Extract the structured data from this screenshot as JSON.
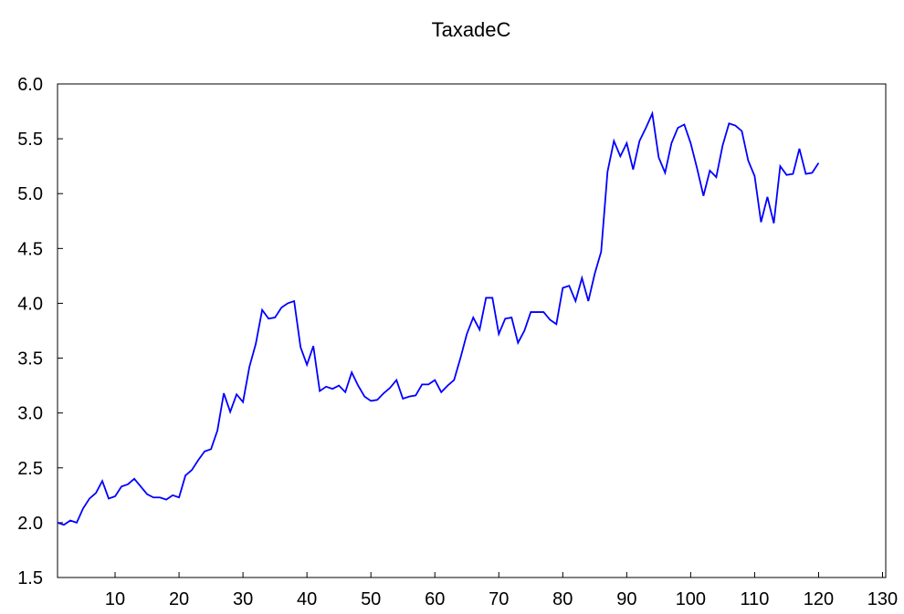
{
  "chart_data": {
    "type": "line",
    "title": "TaxadeC",
    "x": [
      1,
      2,
      3,
      4,
      5,
      6,
      7,
      8,
      9,
      10,
      11,
      12,
      13,
      14,
      15,
      16,
      17,
      18,
      19,
      20,
      21,
      22,
      23,
      24,
      25,
      26,
      27,
      28,
      29,
      30,
      31,
      32,
      33,
      34,
      35,
      36,
      37,
      38,
      39,
      40,
      41,
      42,
      43,
      44,
      45,
      46,
      47,
      48,
      49,
      50,
      51,
      52,
      53,
      54,
      55,
      56,
      57,
      58,
      59,
      60,
      61,
      62,
      63,
      64,
      65,
      66,
      67,
      68,
      69,
      70,
      71,
      72,
      73,
      74,
      75,
      76,
      77,
      78,
      79,
      80,
      81,
      82,
      83,
      84,
      85,
      86,
      87,
      88,
      89,
      90,
      91,
      92,
      93,
      94,
      95,
      96,
      97,
      98,
      99,
      100,
      101,
      102,
      103,
      104,
      105,
      106,
      107,
      108,
      109,
      110,
      111,
      112,
      113,
      114,
      115,
      116,
      117,
      118,
      119,
      120
    ],
    "series": [
      {
        "name": "TaxadeC",
        "color": "#0000ff",
        "values": [
          2.0,
          1.98,
          2.02,
          2.0,
          2.13,
          2.22,
          2.27,
          2.38,
          2.22,
          2.24,
          2.33,
          2.35,
          2.4,
          2.33,
          2.26,
          2.23,
          2.23,
          2.21,
          2.25,
          2.23,
          2.43,
          2.48,
          2.57,
          2.65,
          2.67,
          2.84,
          3.18,
          3.01,
          3.17,
          3.1,
          3.42,
          3.63,
          3.94,
          3.86,
          3.87,
          3.96,
          4.0,
          4.02,
          3.6,
          3.44,
          3.61,
          3.2,
          3.24,
          3.22,
          3.25,
          3.19,
          3.37,
          3.25,
          3.15,
          3.11,
          3.12,
          3.18,
          3.23,
          3.3,
          3.13,
          3.15,
          3.16,
          3.26,
          3.26,
          3.3,
          3.19,
          3.25,
          3.3,
          3.5,
          3.72,
          3.87,
          3.76,
          4.05,
          4.05,
          3.72,
          3.86,
          3.87,
          3.64,
          3.75,
          3.92,
          3.92,
          3.92,
          3.85,
          3.81,
          4.14,
          4.16,
          4.02,
          4.23,
          4.02,
          4.27,
          4.47,
          5.2,
          5.48,
          5.34,
          5.46,
          5.22,
          5.48,
          5.6,
          5.73,
          5.33,
          5.19,
          5.46,
          5.6,
          5.63,
          5.46,
          5.23,
          4.98,
          5.21,
          5.15,
          5.44,
          5.64,
          5.62,
          5.57,
          5.3,
          5.16,
          4.74,
          4.97,
          4.73,
          5.25,
          5.17,
          5.18,
          5.41,
          5.18,
          5.19,
          5.28
        ]
      }
    ],
    "xlim": [
      1,
      130.5
    ],
    "xticks": [
      10,
      20,
      30,
      40,
      50,
      60,
      70,
      80,
      90,
      100,
      110,
      120,
      130
    ],
    "ylim": [
      1.5,
      6.0
    ],
    "yticks": [
      {
        "value": 1.5,
        "label": "1.5"
      },
      {
        "value": 2.0,
        "label": "2.0"
      },
      {
        "value": 2.5,
        "label": "2.5"
      },
      {
        "value": 3.0,
        "label": "3.0"
      },
      {
        "value": 3.5,
        "label": "3.5"
      },
      {
        "value": 4.0,
        "label": "4.0"
      },
      {
        "value": 4.5,
        "label": "4.5"
      },
      {
        "value": 5.0,
        "label": "5.0"
      },
      {
        "value": 5.5,
        "label": "5.5"
      },
      {
        "value": 6.0,
        "label": "6.0"
      }
    ],
    "grid": false
  }
}
